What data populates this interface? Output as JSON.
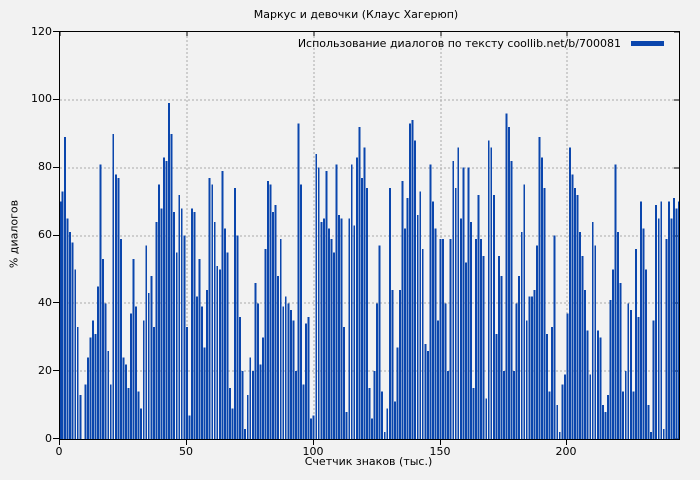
{
  "chart_data": {
    "type": "bar",
    "title": "Маркус и девочки (Клаус Хагерюп)",
    "legend": "Использование диалогов по тексту coollib.net/b/700081",
    "xlabel": "Счетчик знаков (тыс.)",
    "ylabel": "% диалогов",
    "xlim": [
      0,
      244
    ],
    "ylim": [
      0,
      120
    ],
    "x_ticks": [
      0,
      50,
      100,
      150,
      200
    ],
    "y_ticks": [
      0,
      20,
      40,
      60,
      80,
      100,
      120
    ],
    "grid": true,
    "legend_position": "top-right-inside",
    "bar_color": "#0b46ad",
    "grid_color": "#ababab",
    "background_color": "#f2f2f2",
    "x_step": 1,
    "values": [
      70,
      73,
      89,
      65,
      61,
      58,
      50,
      33,
      13,
      0,
      16,
      24,
      30,
      35,
      31,
      45,
      81,
      53,
      40,
      26,
      16,
      90,
      78,
      77,
      59,
      24,
      22,
      15,
      37,
      53,
      39,
      14,
      9,
      35,
      57,
      43,
      48,
      33,
      64,
      75,
      68,
      83,
      82,
      99,
      90,
      67,
      55,
      72,
      68,
      60,
      33,
      7,
      68,
      67,
      42,
      53,
      39,
      27,
      44,
      77,
      75,
      64,
      51,
      50,
      79,
      62,
      55,
      15,
      9,
      74,
      60,
      36,
      20,
      3,
      13,
      24,
      20,
      46,
      40,
      22,
      30,
      56,
      76,
      75,
      67,
      69,
      48,
      59,
      39,
      42,
      40,
      38,
      35,
      20,
      93,
      75,
      16,
      34,
      36,
      6,
      7,
      84,
      80,
      64,
      65,
      79,
      62,
      59,
      55,
      81,
      66,
      65,
      33,
      8,
      65,
      81,
      63,
      83,
      92,
      77,
      86,
      74,
      15,
      6,
      20,
      40,
      57,
      14,
      2,
      9,
      74,
      44,
      11,
      27,
      44,
      76,
      62,
      71,
      93,
      94,
      88,
      66,
      73,
      56,
      28,
      26,
      81,
      70,
      62,
      35,
      59,
      59,
      40,
      20,
      59,
      82,
      74,
      86,
      65,
      80,
      52,
      80,
      64,
      15,
      59,
      72,
      59,
      54,
      12,
      88,
      86,
      72,
      31,
      54,
      48,
      20,
      96,
      92,
      82,
      20,
      40,
      48,
      61,
      75,
      35,
      42,
      42,
      44,
      57,
      89,
      83,
      74,
      31,
      14,
      33,
      60,
      10,
      2,
      16,
      19,
      37,
      86,
      78,
      74,
      72,
      61,
      54,
      44,
      32,
      19,
      64,
      57,
      32,
      30,
      10,
      8,
      13,
      41,
      50,
      81,
      61,
      46,
      14,
      20,
      40,
      38,
      14,
      56,
      36,
      70,
      62,
      50,
      10,
      2,
      35,
      69,
      65,
      70,
      3,
      59,
      70,
      65,
      71,
      68,
      70
    ]
  }
}
